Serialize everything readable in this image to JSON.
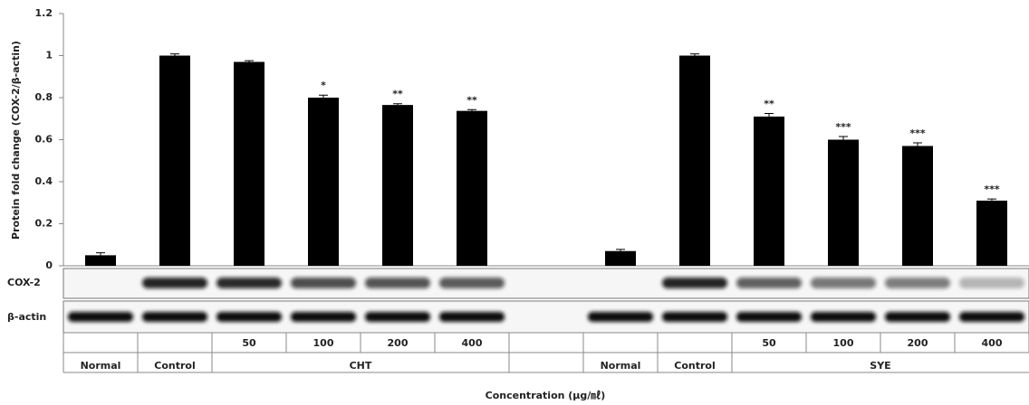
{
  "chart_data": {
    "type": "bar",
    "y_label": "Protein fold change (COX-2/β-actin)",
    "x_label": "Concentration (μg/㎖)",
    "categories": [
      null,
      null,
      "50",
      "100",
      "200",
      "400",
      null,
      null,
      null,
      "50",
      "100",
      "200",
      "400"
    ],
    "values": [
      0.05,
      1.0,
      0.97,
      0.8,
      0.765,
      0.737,
      null,
      0.07,
      1.0,
      0.71,
      0.6,
      0.57,
      0.31
    ],
    "errors": [
      0.012,
      0.008,
      0.006,
      0.012,
      0.006,
      0.006,
      null,
      0.008,
      0.008,
      0.015,
      0.015,
      0.015,
      0.008
    ],
    "annotations": [
      null,
      null,
      null,
      "*",
      "**",
      "**",
      null,
      null,
      null,
      "**",
      "***",
      "***",
      "***"
    ],
    "color": "#000000",
    "group_labels": [
      "Normal",
      "Control",
      "CHT",
      null,
      "Normal",
      "Control",
      "SYE"
    ],
    "group_spans": [
      1,
      1,
      4,
      1,
      1,
      1,
      4
    ],
    "blot_labels": [
      "COX-2",
      "β-actin"
    ],
    "ylim": [
      0,
      1.2
    ],
    "yticks": [
      0,
      0.2,
      0.4,
      0.6,
      0.8,
      1,
      1.2
    ]
  }
}
